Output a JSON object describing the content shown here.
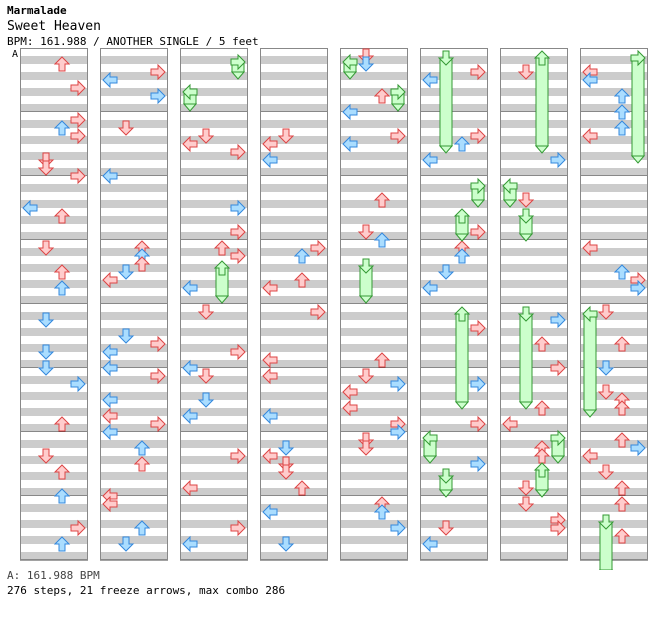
{
  "header": {
    "artist": "Marmalade",
    "title": "Sweet Heaven",
    "info": "BPM: 161.988 / ANOTHER SINGLE / 5 feet"
  },
  "chart": {
    "section_marker": "A",
    "columns": 8,
    "measures_per_column": 8,
    "stripe_colors": [
      "#ffffff",
      "#cccccc"
    ],
    "border_color": "#888888",
    "arrow_colors": {
      "quarter_fill": "#ffcccc",
      "quarter_stroke": "#dd4444",
      "eighth_fill": "#aaddff",
      "eighth_stroke": "#3388dd",
      "freeze_fill": "#ccffcc",
      "freeze_stroke": "#339933"
    },
    "icons": {
      "left": "arrow-left-icon",
      "down": "arrow-down-icon",
      "up": "arrow-up-icon",
      "right": "arrow-right-icon"
    }
  },
  "footer": {
    "bpm_line": "A: 161.988 BPM",
    "stats_line": "276 steps, 21 freeze arrows, max combo 286"
  }
}
